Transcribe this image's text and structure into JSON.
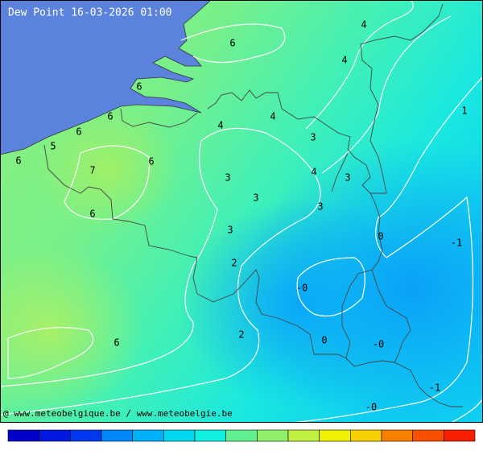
{
  "title": "Dew Point 16-03-2026 01:00",
  "credit": "@ www.meteobelgique.be / www.meteobelgie.be",
  "labels": [
    "6",
    "4",
    "4",
    "6",
    "1",
    "6",
    "4",
    "4",
    "6",
    "3",
    "5",
    "6",
    "6",
    "7",
    "4",
    "3",
    "3",
    "3",
    "3",
    "6",
    "3",
    "0",
    "-1",
    "2",
    "-0",
    "2",
    "0",
    "-0",
    "6",
    "-1",
    "-0"
  ]
}
